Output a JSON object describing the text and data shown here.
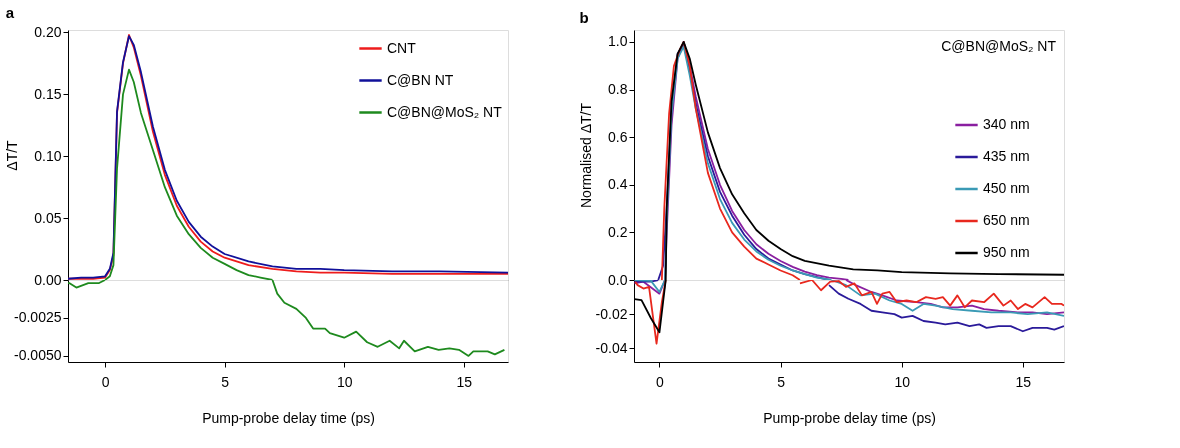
{
  "chart_data": [
    {
      "type": "line",
      "title": "a",
      "ylabel": "ΔT/T",
      "xlim": [
        -1.55,
        16.85
      ],
      "ylim": [
        0,
        0.202
      ],
      "xticks": [
        0,
        5,
        10,
        15
      ],
      "yticks": [
        {
          "value": 0.05,
          "label": "0.05"
        },
        {
          "value": 0.1,
          "label": "0.10"
        },
        {
          "value": 0.15,
          "label": "0.15"
        },
        {
          "value": 0.2,
          "label": "0.20"
        }
      ],
      "tick_labels": "y",
      "legend": "top right",
      "grid": false,
      "series": [
        {
          "name": "CNT",
          "color": "#ee1c1c",
          "x": [
            -1.55,
            -1,
            -0.5,
            0,
            0.2,
            0.35,
            0.5,
            0.75,
            1.0,
            1.2,
            1.5,
            2,
            2.5,
            3,
            3.5,
            4,
            4.5,
            5,
            6,
            7,
            8,
            9,
            10,
            12,
            14,
            16.85
          ],
          "values": [
            0.001,
            0.001,
            0.001,
            0.002,
            0.008,
            0.02,
            0.135,
            0.175,
            0.198,
            0.188,
            0.165,
            0.12,
            0.085,
            0.06,
            0.043,
            0.031,
            0.023,
            0.018,
            0.012,
            0.009,
            0.007,
            0.006,
            0.006,
            0.005,
            0.005,
            0.005
          ]
        },
        {
          "name": "C@BN NT",
          "color": "#10109a",
          "x": [
            -1.55,
            -1,
            -0.5,
            0,
            0.2,
            0.35,
            0.5,
            0.75,
            1.0,
            1.2,
            1.5,
            2,
            2.5,
            3,
            3.5,
            4,
            4.5,
            5,
            6,
            7,
            8,
            9,
            10,
            12,
            14,
            16.85
          ],
          "values": [
            0.001,
            0.002,
            0.002,
            0.003,
            0.009,
            0.022,
            0.136,
            0.176,
            0.197,
            0.19,
            0.168,
            0.124,
            0.089,
            0.064,
            0.047,
            0.035,
            0.027,
            0.021,
            0.015,
            0.011,
            0.009,
            0.009,
            0.008,
            0.007,
            0.007,
            0.006
          ]
        },
        {
          "name": "C@BN@MoS₂ NT",
          "color": "#1e8a1e",
          "x": [
            0,
            0.2,
            0.35,
            0.5,
            0.75,
            1.0,
            1.2,
            1.5,
            2,
            2.5,
            3,
            3.5,
            4,
            4.5,
            5,
            5.5,
            6,
            6.5,
            7.0
          ],
          "values": [
            0,
            0.003,
            0.012,
            0.09,
            0.15,
            0.17,
            0.16,
            0.135,
            0.105,
            0.075,
            0.052,
            0.037,
            0.026,
            0.018,
            0.013,
            0.008,
            0.004,
            0.002,
            0
          ]
        }
      ]
    },
    {
      "type": "line",
      "xlabel": "Pump-probe delay time (ps)",
      "xlim": [
        -1.55,
        16.85
      ],
      "ylim": [
        -0.0054,
        0
      ],
      "xticks": [
        0,
        5,
        10,
        15
      ],
      "yticks": [
        {
          "value": -0.005,
          "label": "-0.0050"
        },
        -0.0025,
        {
          "value": 0,
          "label": "0.00"
        }
      ],
      "legend": false,
      "grid": false,
      "series": [
        {
          "color": "#1e8a1e",
          "x": [
            -1.55,
            -1.5,
            -1.2,
            -0.7,
            -0.25,
            0,
            3,
            7.0,
            7.2,
            7.5,
            8.0,
            8.4,
            8.7,
            9.2,
            9.4,
            10,
            10.5,
            10.96,
            11.4,
            11.9,
            12.3,
            12.5,
            12.95,
            13.5,
            13.95,
            14.4,
            14.8,
            15.2,
            15.4,
            16.0,
            16.3,
            16.7
          ],
          "values": [
            -0.0002,
            -0.0002,
            -0.0005,
            -0.0002,
            -0.0002,
            0,
            null,
            0,
            -0.0009,
            -0.0015,
            -0.0019,
            -0.0025,
            -0.0032,
            -0.0032,
            -0.0035,
            -0.0038,
            -0.0034,
            -0.0041,
            -0.0044,
            -0.004,
            -0.0045,
            -0.004,
            -0.0047,
            -0.0044,
            -0.0046,
            -0.0045,
            -0.0046,
            -0.005,
            -0.0047,
            -0.0047,
            -0.0049,
            -0.0046
          ]
        }
      ]
    },
    {
      "type": "line",
      "title": "b",
      "ylabel": "Normalised ΔT/T",
      "xlim": [
        -1.05,
        16.7
      ],
      "ylim": [
        0,
        1.05
      ],
      "xticks": [
        0,
        5,
        10,
        15
      ],
      "yticks": [
        0.2,
        0.4,
        0.6,
        0.8,
        {
          "value": 1,
          "label": "1.0"
        }
      ],
      "tick_labels": "y",
      "legend": "right",
      "grid": false,
      "annotations": [
        "C@BN@MoS₂ NT"
      ],
      "series": [
        {
          "name": "340 nm",
          "color": "#8a1fa0",
          "x": [
            0.23,
            0.3,
            0.5,
            0.75,
            1.0,
            1.25,
            1.5,
            2,
            2.5,
            3,
            3.5,
            4,
            4.5,
            5,
            5.5,
            6,
            6.5,
            7,
            7.5,
            7.8
          ],
          "values": [
            0,
            0.2,
            0.65,
            0.93,
            1.0,
            0.9,
            0.77,
            0.55,
            0.4,
            0.29,
            0.21,
            0.15,
            0.11,
            0.08,
            0.055,
            0.035,
            0.02,
            0.01,
            0.005,
            0
          ]
        },
        {
          "name": "435 nm",
          "color": "#2a1a9a",
          "x": [
            -0.05,
            0.15,
            0.3,
            0.5,
            0.75,
            1,
            1.25,
            1.5,
            2,
            2.5,
            3,
            3.5,
            4,
            4.5,
            5,
            5.5,
            6,
            6.5,
            7
          ],
          "values": [
            0,
            0.06,
            0.3,
            0.72,
            0.95,
            0.99,
            0.88,
            0.74,
            0.52,
            0.37,
            0.27,
            0.19,
            0.13,
            0.09,
            0.065,
            0.04,
            0.025,
            0.012,
            0
          ]
        },
        {
          "name": "450 nm",
          "color": "#3a9ab5",
          "x": [
            0.23,
            0.3,
            0.5,
            0.75,
            1,
            1.25,
            1.5,
            2,
            2.5,
            3,
            3.5,
            4,
            4.5,
            5,
            5.5,
            6,
            6.5,
            7.1
          ],
          "values": [
            0,
            0.25,
            0.7,
            0.93,
            0.98,
            0.86,
            0.72,
            0.49,
            0.34,
            0.24,
            0.17,
            0.12,
            0.085,
            0.06,
            0.04,
            0.025,
            0.01,
            0
          ]
        },
        {
          "name": "650 nm",
          "color": "#e8281e",
          "x": [
            0.1,
            0.2,
            0.4,
            0.6,
            0.85,
            1.0,
            1.25,
            1.5,
            2,
            2.5,
            3,
            3.5,
            4,
            4.5,
            5,
            5.5,
            5.8
          ],
          "values": [
            0,
            0.3,
            0.7,
            0.9,
            0.97,
            1.0,
            0.9,
            0.72,
            0.45,
            0.3,
            0.2,
            0.14,
            0.09,
            0.065,
            0.04,
            0.02,
            0
          ]
        },
        {
          "name": "950 nm",
          "color": "#000000",
          "x": [
            0.26,
            0.3,
            0.5,
            0.75,
            1.0,
            1.25,
            1.5,
            2,
            2.5,
            3,
            3.5,
            4,
            4.5,
            5,
            5.5,
            6,
            7,
            8,
            9,
            10,
            12,
            14,
            16.7
          ],
          "values": [
            0,
            0.3,
            0.75,
            0.95,
            1.0,
            0.93,
            0.82,
            0.62,
            0.47,
            0.36,
            0.28,
            0.21,
            0.165,
            0.13,
            0.1,
            0.08,
            0.06,
            0.045,
            0.04,
            0.033,
            0.028,
            0.025,
            0.022
          ]
        }
      ]
    },
    {
      "type": "line",
      "xlabel": "Pump-probe delay time (ps)",
      "xlim": [
        -1.05,
        16.7
      ],
      "ylim": [
        -0.048,
        0
      ],
      "xticks": [
        0,
        5,
        10,
        15
      ],
      "yticks": [
        -0.04,
        -0.02,
        {
          "value": 0,
          "label": "0.0"
        }
      ],
      "legend": false,
      "grid": false,
      "series": [
        {
          "color": "#8a1fa0",
          "x": [
            -1.03,
            -0.66,
            0,
            0.23,
            4,
            7.7,
            8.1,
            8.75,
            9.2,
            9.8,
            10.6,
            11.2,
            11.7,
            12.3,
            12.9,
            13.4,
            14.0,
            14.8,
            15.4,
            16.0,
            16.7
          ],
          "values": [
            -0.002,
            -0.001,
            -0.008,
            0,
            null,
            0,
            -0.003,
            -0.007,
            -0.009,
            -0.012,
            -0.013,
            -0.014,
            -0.016,
            -0.016,
            -0.015,
            -0.017,
            -0.018,
            -0.019,
            -0.019,
            -0.02,
            -0.019
          ]
        },
        {
          "color": "#2a1a9a",
          "x": [
            -1.03,
            -0.35,
            -0.05,
            4,
            7.0,
            7.4,
            7.8,
            8.3,
            8.75,
            9.2,
            9.7,
            10,
            10.45,
            10.9,
            11.4,
            11.8,
            12.3,
            12.8,
            13.2,
            13.5,
            14.0,
            14.5,
            15.0,
            15.4,
            16.0,
            16.3,
            16.7
          ],
          "values": [
            -0.001,
            -0.001,
            0,
            null,
            -0.003,
            -0.008,
            -0.011,
            -0.014,
            -0.018,
            -0.019,
            -0.02,
            -0.022,
            -0.021,
            -0.024,
            -0.025,
            -0.026,
            -0.025,
            -0.027,
            -0.026,
            -0.028,
            -0.027,
            -0.027,
            -0.03,
            -0.028,
            -0.028,
            -0.029,
            -0.027
          ]
        },
        {
          "color": "#3a9ab5",
          "x": [
            -1.03,
            -0.35,
            0,
            0.23,
            4,
            7.1,
            7.7,
            8.3,
            8.9,
            9.5,
            10.0,
            10.45,
            10.9,
            11.4,
            12.1,
            12.9,
            13.7,
            14.5,
            15.2,
            16.0,
            16.7
          ],
          "values": [
            0,
            -0.0005,
            -0.007,
            0,
            null,
            0,
            -0.003,
            -0.009,
            -0.008,
            -0.012,
            -0.014,
            -0.018,
            -0.014,
            -0.015,
            -0.017,
            -0.018,
            -0.019,
            -0.019,
            -0.02,
            -0.019,
            -0.021
          ]
        },
        {
          "color": "#e8281e",
          "x": [
            -1.0,
            -0.9,
            -0.66,
            -0.43,
            -0.12,
            0.1,
            0.26,
            3,
            5.8,
            6.3,
            6.67,
            7.05,
            7.4,
            7.7,
            8.05,
            8.36,
            8.75,
            8.98,
            9.2,
            9.5,
            9.8,
            10.2,
            10.6,
            11.0,
            11.4,
            11.7,
            12.0,
            12.3,
            12.6,
            12.9,
            13.4,
            13.8,
            14.2,
            14.5,
            14.8,
            15.1,
            15.4,
            15.9,
            16.2,
            16.6,
            16.7
          ],
          "values": [
            -0.001,
            -0.003,
            -0.005,
            -0.004,
            -0.0373,
            -0.013,
            0,
            null,
            -0.002,
            0,
            -0.006,
            -0.001,
            -0.0006,
            -0.004,
            -0.002,
            -0.009,
            -0.007,
            -0.014,
            -0.008,
            -0.007,
            -0.013,
            -0.012,
            -0.013,
            -0.01,
            -0.011,
            -0.01,
            -0.015,
            -0.009,
            -0.016,
            -0.012,
            -0.013,
            -0.008,
            -0.015,
            -0.012,
            -0.017,
            -0.014,
            -0.016,
            -0.01,
            -0.014,
            -0.014,
            -0.015
          ]
        },
        {
          "color": "#000000",
          "x": [
            -1.03,
            -0.74,
            -0.35,
            0,
            0.26
          ],
          "values": [
            -0.0112,
            -0.0118,
            -0.0224,
            -0.0306,
            0
          ]
        }
      ]
    }
  ]
}
